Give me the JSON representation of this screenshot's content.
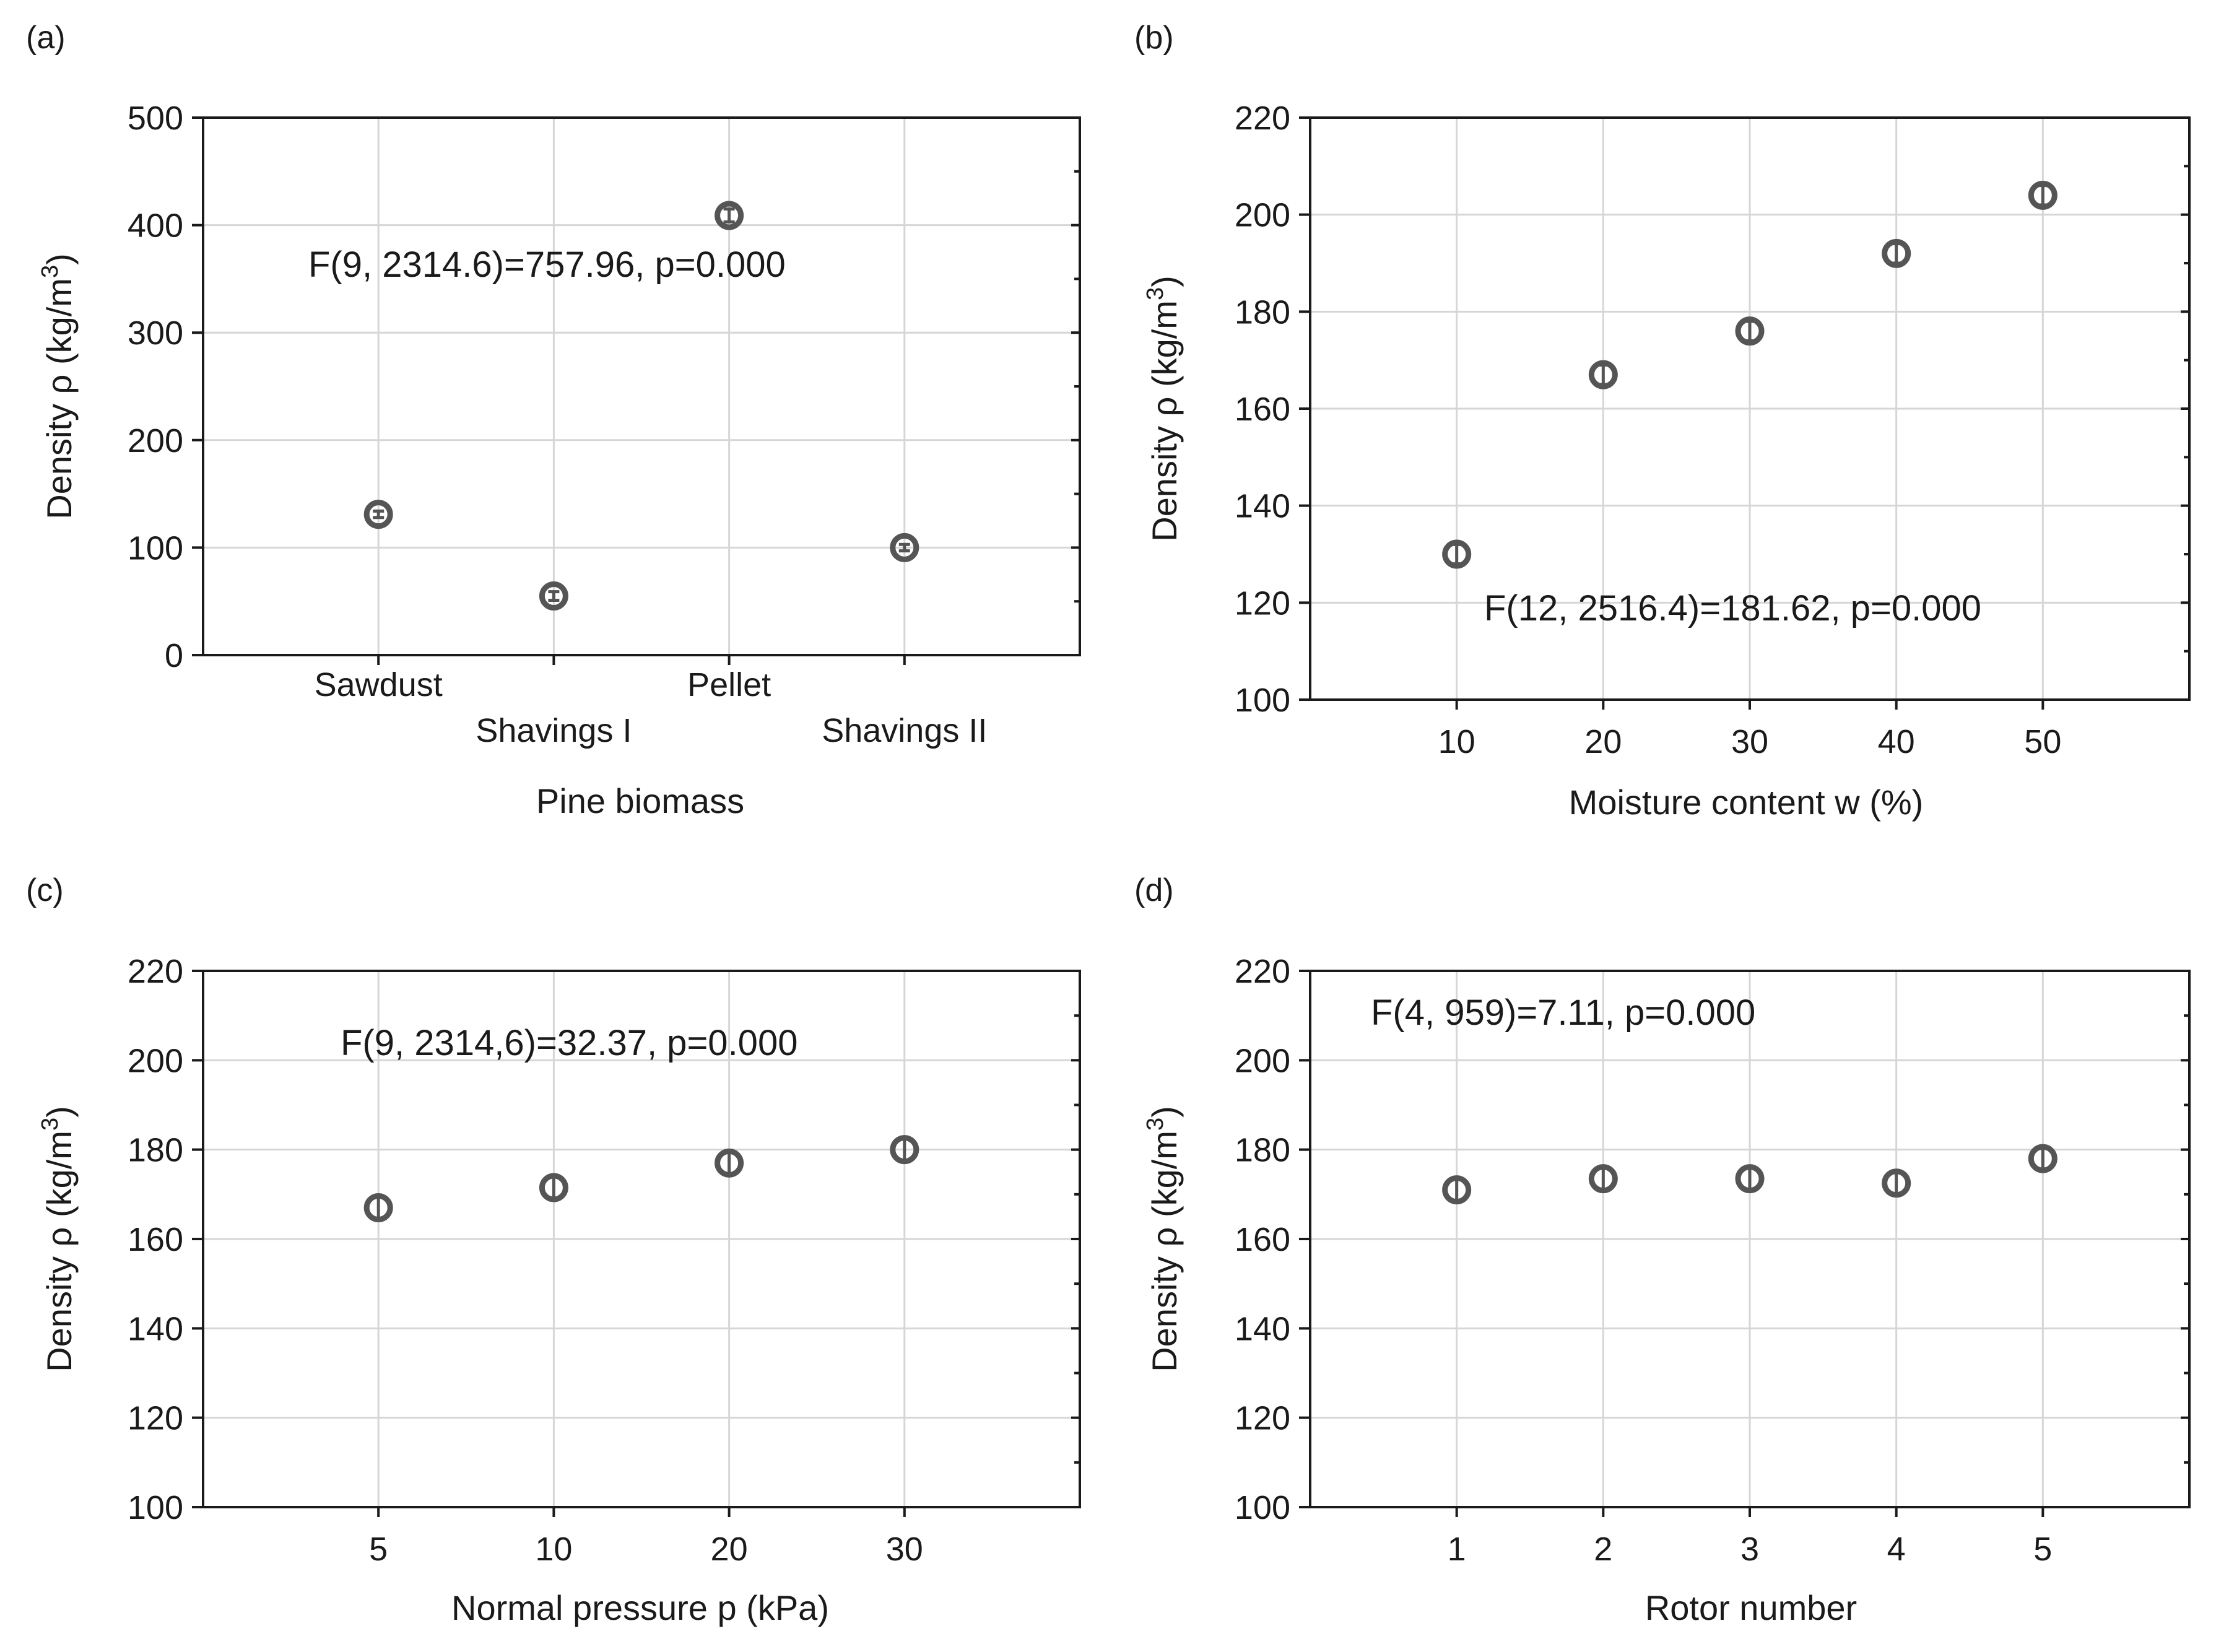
{
  "chart_data": [
    {
      "type": "scatter",
      "panel": "(a)",
      "annotation": "F(9, 2314.6)=757.96, p=0.000",
      "xlabel": "Pine biomass",
      "ylabel_prefix": "Density ρ (kg/m",
      "ylabel_sup": "3",
      "ylabel_suffix": ")",
      "categorical": true,
      "categories": [
        "Sawdust",
        "Shavings I",
        "Pellet",
        "Shavings II"
      ],
      "x": [
        1,
        2,
        3,
        4
      ],
      "values": [
        131,
        55,
        409,
        100
      ],
      "errors": [
        3,
        4,
        6,
        3
      ],
      "xlim": [
        0,
        5
      ],
      "ylim": [
        0,
        500
      ],
      "yticks": [
        0,
        100,
        200,
        300,
        400,
        500
      ],
      "grid": true
    },
    {
      "type": "scatter",
      "panel": "(b)",
      "annotation": "F(12, 2516.4)=181.62, p=0.000",
      "xlabel": "Moisture content w (%)",
      "ylabel_prefix": "Density ρ (kg/m",
      "ylabel_sup": "3",
      "ylabel_suffix": ")",
      "categorical": false,
      "categories": [
        "10",
        "20",
        "30",
        "40",
        "50"
      ],
      "x": [
        10,
        20,
        30,
        40,
        50
      ],
      "values": [
        130,
        167,
        176,
        192,
        204
      ],
      "errors": [
        2,
        2,
        2,
        2,
        2
      ],
      "xlim": [
        0,
        60
      ],
      "ylim": [
        100,
        220
      ],
      "yticks": [
        100,
        120,
        140,
        160,
        180,
        200,
        220
      ],
      "grid": true
    },
    {
      "type": "scatter",
      "panel": "(c)",
      "annotation": "F(9, 2314,6)=32.37, p=0.000",
      "xlabel": "Normal pressure p (kPa)",
      "ylabel_prefix": "Density ρ (kg/m",
      "ylabel_sup": "3",
      "ylabel_suffix": ")",
      "categorical": true,
      "categories": [
        "5",
        "10",
        "20",
        "30"
      ],
      "x": [
        1,
        2,
        3,
        4
      ],
      "values": [
        167,
        171.5,
        177,
        180
      ],
      "errors": [
        2.5,
        2.5,
        2.5,
        2.5
      ],
      "xlim": [
        0,
        5
      ],
      "ylim": [
        100,
        220
      ],
      "yticks": [
        100,
        120,
        140,
        160,
        180,
        200,
        220
      ],
      "grid": true
    },
    {
      "type": "scatter",
      "panel": "(d)",
      "annotation": "F(4, 959)=7.11, p=0.000",
      "xlabel": "Rotor number",
      "ylabel_prefix": "Density ρ (kg/m",
      "ylabel_sup": "3",
      "ylabel_suffix": ")",
      "categorical": false,
      "categories": [
        "1",
        "2",
        "3",
        "4",
        "5"
      ],
      "x": [
        1,
        2,
        3,
        4,
        5
      ],
      "values": [
        171,
        173.5,
        173.5,
        172.5,
        178
      ],
      "errors": [
        2.5,
        2.5,
        2.5,
        2.5,
        2.5
      ],
      "xlim": [
        0,
        6
      ],
      "ylim": [
        100,
        220
      ],
      "yticks": [
        100,
        120,
        140,
        160,
        180,
        200,
        220
      ],
      "grid": true
    }
  ]
}
